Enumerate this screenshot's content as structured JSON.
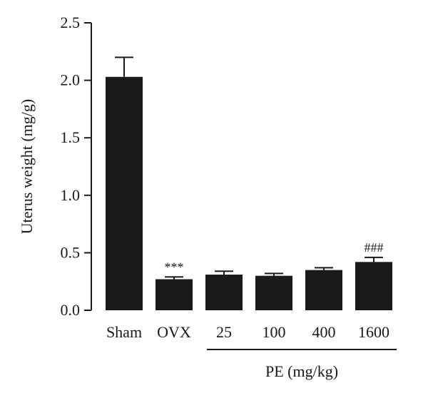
{
  "chart_data": {
    "type": "bar",
    "categories": [
      "Sham",
      "OVX",
      "25",
      "100",
      "400",
      "1600"
    ],
    "values": [
      2.03,
      0.27,
      0.31,
      0.3,
      0.35,
      0.42
    ],
    "errors": [
      0.17,
      0.02,
      0.03,
      0.02,
      0.02,
      0.04
    ],
    "annotations": [
      "",
      "***",
      "",
      "",
      "",
      "###"
    ],
    "ylabel": "Uterus weight (mg/g)",
    "ylim": [
      0,
      2.5
    ],
    "yticks": [
      "0.0",
      "0.5",
      "1.0",
      "1.5",
      "2.0",
      "2.5"
    ],
    "group_label": "PE (mg/kg)",
    "group_categories": [
      "25",
      "100",
      "400",
      "1600"
    ],
    "bar_color": "#1a1a1a",
    "grid": false,
    "legend": "none"
  }
}
